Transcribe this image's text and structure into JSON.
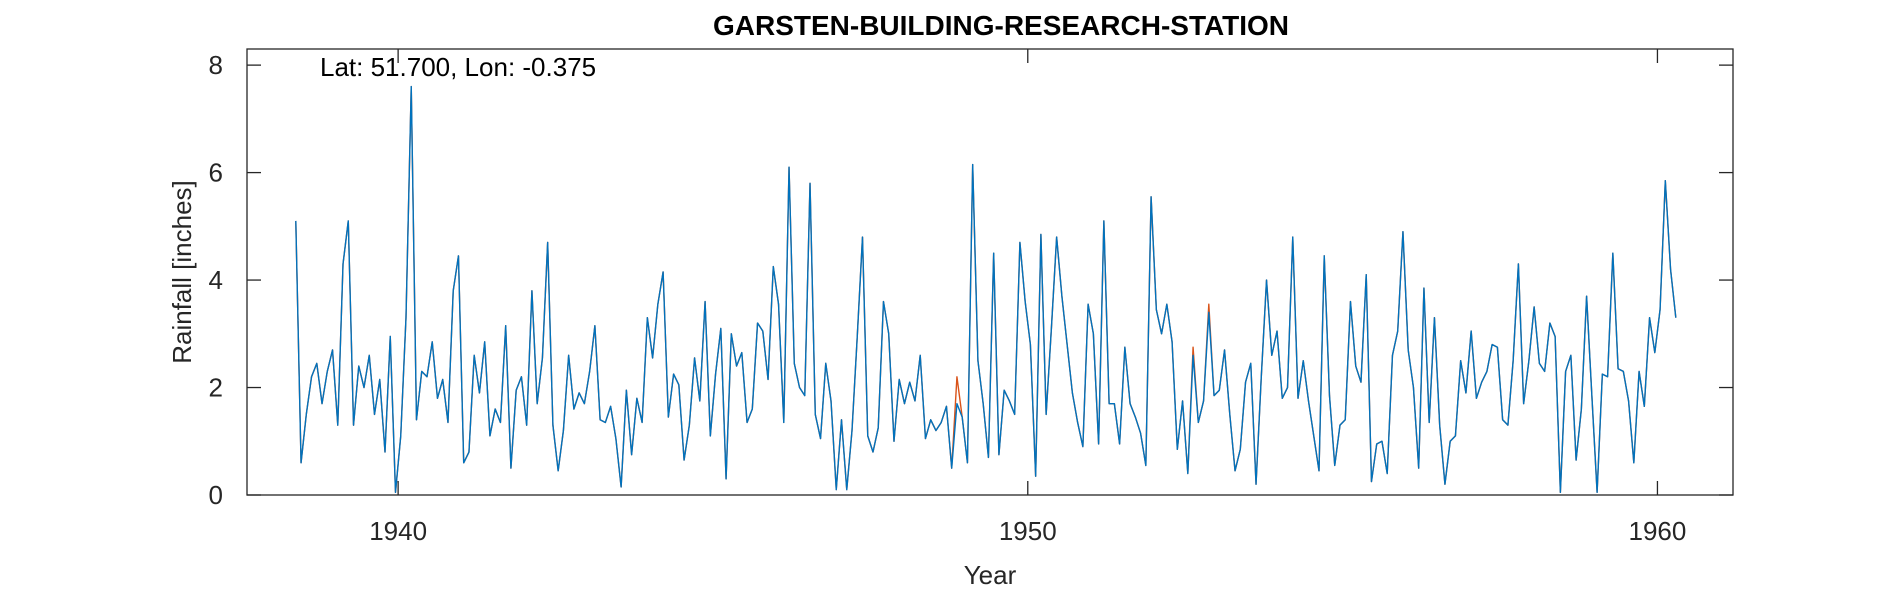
{
  "chart_data": {
    "type": "line",
    "title": "GARSTEN-BUILDING-RESEARCH-STATION",
    "xlabel": "Year",
    "ylabel": "Rainfall [inches]",
    "annotation": "Lat: 51.700, Lon: -0.375",
    "xlim": [
      1937.6,
      1961.2
    ],
    "ylim": [
      0,
      8.3
    ],
    "xticks": [
      1940,
      1950,
      1960
    ],
    "yticks": [
      0,
      2,
      4,
      6,
      8
    ],
    "grid": false,
    "colors": {
      "primary": "#0072BD",
      "secondary": "#D95319",
      "axes": "#262626"
    },
    "start": 1938.375,
    "step": 0.0833333,
    "series": [
      {
        "color": "#D95319",
        "values": [
          5.1,
          0.6,
          1.5,
          2.2,
          2.45,
          1.7,
          2.3,
          2.7,
          1.3,
          4.3,
          5.1,
          1.3,
          2.4,
          2.0,
          2.6,
          1.5,
          2.15,
          0.8,
          2.95,
          0.05,
          1.1,
          3.3,
          7.6,
          1.4,
          2.3,
          2.2,
          2.85,
          1.8,
          2.15,
          1.35,
          3.8,
          4.45,
          0.6,
          0.8,
          2.6,
          1.9,
          2.85,
          1.1,
          1.6,
          1.35,
          3.15,
          0.5,
          1.95,
          2.2,
          1.3,
          3.8,
          1.7,
          2.55,
          4.7,
          1.3,
          0.45,
          1.2,
          2.6,
          1.6,
          1.9,
          1.7,
          2.3,
          3.15,
          1.4,
          1.35,
          1.65,
          1.05,
          0.15,
          1.95,
          0.75,
          1.8,
          1.35,
          3.3,
          2.55,
          3.55,
          4.15,
          1.45,
          2.25,
          2.05,
          0.65,
          1.3,
          2.55,
          1.75,
          3.6,
          1.1,
          2.25,
          3.1,
          0.3,
          3.0,
          2.4,
          2.65,
          1.35,
          1.6,
          3.2,
          3.05,
          2.15,
          4.25,
          3.55,
          1.35,
          6.1,
          2.45,
          2.0,
          1.85,
          5.8,
          1.5,
          1.05,
          2.45,
          1.75,
          0.1,
          1.4,
          0.1,
          1.2,
          2.95,
          4.8,
          1.1,
          0.8,
          1.25,
          3.6,
          3.0,
          1.0,
          2.15,
          1.7,
          2.1,
          1.75,
          2.6,
          1.05,
          1.4,
          1.2,
          1.35,
          1.65,
          0.5,
          2.2,
          1.45,
          0.6,
          6.15,
          2.5,
          1.7,
          0.7,
          4.5,
          0.75,
          1.95,
          1.75,
          1.5,
          4.7,
          3.6,
          2.8,
          0.35,
          4.85,
          1.5,
          3.1,
          4.8,
          3.7,
          2.8,
          1.9,
          1.35,
          0.9,
          3.55,
          3.0,
          0.95,
          5.1,
          1.7,
          1.7,
          0.95,
          2.75,
          1.7,
          1.45,
          1.15,
          0.55,
          5.55,
          3.45,
          3.0,
          3.55,
          2.85,
          0.85,
          1.75,
          0.4,
          2.75,
          1.35,
          1.75,
          3.55,
          1.85,
          1.95,
          2.7,
          1.5,
          0.45,
          0.85,
          2.1,
          2.45,
          0.2,
          2.2,
          4.0,
          2.6,
          3.05,
          1.8,
          2.0,
          4.8,
          1.8,
          2.5,
          1.75,
          1.1,
          0.45,
          4.45,
          1.85,
          0.55,
          1.3,
          1.4,
          3.6,
          2.4,
          2.1,
          4.1,
          0.25,
          0.95,
          1.0,
          0.4,
          2.6,
          3.05,
          4.9,
          2.7,
          2.0,
          0.5,
          3.85,
          1.35,
          3.3,
          1.3,
          0.2,
          1.0,
          1.1,
          2.5,
          1.9,
          3.05,
          1.8,
          2.1,
          2.3,
          2.8,
          2.75,
          1.4,
          1.3,
          2.5,
          4.3,
          1.7,
          2.5,
          3.5,
          2.45,
          2.3,
          3.2,
          2.95,
          0.05,
          2.3,
          2.6,
          0.65,
          1.6,
          3.7,
          1.85,
          0.05,
          2.25,
          2.2,
          4.5,
          2.35,
          2.3,
          1.75,
          0.6,
          2.3,
          1.65,
          3.3,
          2.65,
          3.45,
          5.85,
          4.2,
          3.3
        ]
      },
      {
        "color": "#0072BD",
        "values": [
          5.1,
          0.6,
          1.5,
          2.2,
          2.45,
          1.7,
          2.3,
          2.7,
          1.3,
          4.3,
          5.1,
          1.3,
          2.4,
          2.0,
          2.6,
          1.5,
          2.15,
          0.8,
          2.95,
          0.05,
          1.1,
          3.3,
          7.6,
          1.4,
          2.3,
          2.2,
          2.85,
          1.8,
          2.15,
          1.35,
          3.8,
          4.45,
          0.6,
          0.8,
          2.6,
          1.9,
          2.85,
          1.1,
          1.6,
          1.35,
          3.15,
          0.5,
          1.95,
          2.2,
          1.3,
          3.8,
          1.7,
          2.55,
          4.7,
          1.3,
          0.45,
          1.2,
          2.6,
          1.6,
          1.9,
          1.7,
          2.3,
          3.15,
          1.4,
          1.35,
          1.65,
          1.05,
          0.15,
          1.95,
          0.75,
          1.8,
          1.35,
          3.3,
          2.55,
          3.55,
          4.15,
          1.45,
          2.25,
          2.05,
          0.65,
          1.3,
          2.55,
          1.75,
          3.6,
          1.1,
          2.25,
          3.1,
          0.3,
          3.0,
          2.4,
          2.65,
          1.35,
          1.6,
          3.2,
          3.05,
          2.15,
          4.25,
          3.55,
          1.35,
          6.1,
          2.45,
          2.0,
          1.85,
          5.8,
          1.5,
          1.05,
          2.45,
          1.75,
          0.1,
          1.4,
          0.1,
          1.2,
          2.95,
          4.8,
          1.1,
          0.8,
          1.25,
          3.6,
          3.0,
          1.0,
          2.15,
          1.7,
          2.1,
          1.75,
          2.6,
          1.05,
          1.4,
          1.2,
          1.35,
          1.65,
          0.5,
          1.7,
          1.45,
          0.6,
          6.15,
          2.5,
          1.7,
          0.7,
          4.5,
          0.75,
          1.95,
          1.75,
          1.5,
          4.7,
          3.6,
          2.8,
          0.35,
          4.85,
          1.5,
          3.1,
          4.8,
          3.7,
          2.8,
          1.9,
          1.35,
          0.9,
          3.55,
          3.0,
          0.95,
          5.1,
          1.7,
          1.7,
          0.95,
          2.75,
          1.7,
          1.45,
          1.15,
          0.55,
          5.55,
          3.45,
          3.0,
          3.55,
          2.85,
          0.85,
          1.75,
          0.4,
          2.6,
          1.35,
          1.75,
          3.4,
          1.85,
          1.95,
          2.7,
          1.5,
          0.45,
          0.85,
          2.1,
          2.45,
          0.2,
          2.2,
          4.0,
          2.6,
          3.05,
          1.8,
          2.0,
          4.8,
          1.8,
          2.5,
          1.75,
          1.1,
          0.45,
          4.45,
          1.85,
          0.55,
          1.3,
          1.4,
          3.6,
          2.4,
          2.1,
          4.1,
          0.25,
          0.95,
          1.0,
          0.4,
          2.6,
          3.05,
          4.9,
          2.7,
          2.0,
          0.5,
          3.85,
          1.35,
          3.3,
          1.3,
          0.2,
          1.0,
          1.1,
          2.5,
          1.9,
          3.05,
          1.8,
          2.1,
          2.3,
          2.8,
          2.75,
          1.4,
          1.3,
          2.5,
          4.3,
          1.7,
          2.5,
          3.5,
          2.45,
          2.3,
          3.2,
          2.95,
          0.05,
          2.3,
          2.6,
          0.65,
          1.6,
          3.7,
          1.85,
          0.05,
          2.25,
          2.2,
          4.5,
          2.35,
          2.3,
          1.75,
          0.6,
          2.3,
          1.65,
          3.3,
          2.65,
          3.45,
          5.85,
          4.2,
          3.3
        ]
      }
    ]
  }
}
